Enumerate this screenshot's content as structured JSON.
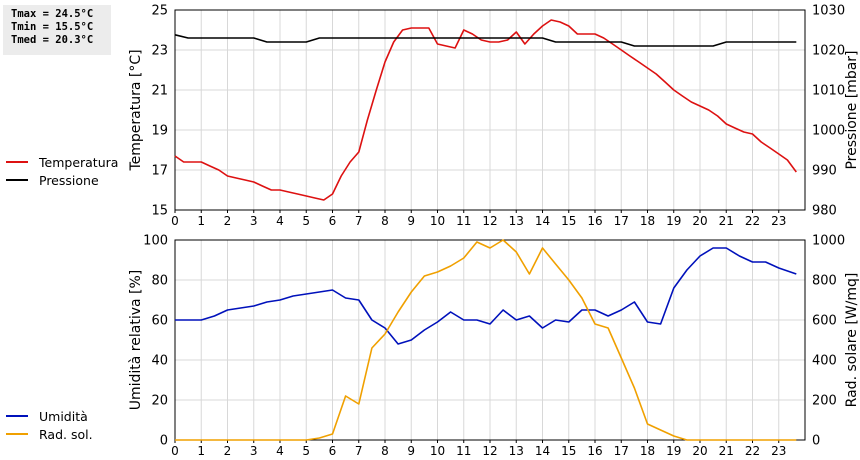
{
  "stats": {
    "tmax": "Tmax = 24.5°C",
    "tmin": "Tmin = 15.5°C",
    "tmed": "Tmed = 20.3°C"
  },
  "colors": {
    "temperature": "#dd1111",
    "pressure": "#000000",
    "humidity": "#0011bb",
    "solar": "#f0a000",
    "grid": "#d8d8d8"
  },
  "chart_data": [
    {
      "type": "line",
      "xlim": [
        0,
        24
      ],
      "x_ticks": [
        0,
        1,
        2,
        3,
        4,
        5,
        6,
        7,
        8,
        9,
        10,
        11,
        12,
        13,
        14,
        15,
        16,
        17,
        18,
        19,
        20,
        21,
        22,
        23
      ],
      "y_left": {
        "label": "Temperatura [°C]",
        "lim": [
          15,
          25
        ],
        "ticks": [
          15,
          17,
          19,
          21,
          23,
          25
        ]
      },
      "y_right": {
        "label": "Pressione [mbar]",
        "lim": [
          980,
          1030
        ],
        "ticks": [
          980,
          990,
          1000,
          1010,
          1020,
          1030
        ]
      },
      "grid": true,
      "legend_placement": "left",
      "series": [
        {
          "name": "Temperatura",
          "axis": "left",
          "color": "#dd1111",
          "points": [
            [
              0,
              17.7
            ],
            [
              0.33,
              17.4
            ],
            [
              0.67,
              17.4
            ],
            [
              1,
              17.4
            ],
            [
              1.33,
              17.2
            ],
            [
              1.67,
              17.0
            ],
            [
              2,
              16.7
            ],
            [
              2.33,
              16.6
            ],
            [
              2.67,
              16.5
            ],
            [
              3,
              16.4
            ],
            [
              3.33,
              16.2
            ],
            [
              3.67,
              16.0
            ],
            [
              4,
              16.0
            ],
            [
              4.33,
              15.9
            ],
            [
              4.67,
              15.8
            ],
            [
              5,
              15.7
            ],
            [
              5.33,
              15.6
            ],
            [
              5.67,
              15.5
            ],
            [
              6,
              15.8
            ],
            [
              6.33,
              16.7
            ],
            [
              6.67,
              17.4
            ],
            [
              7,
              17.9
            ],
            [
              7.33,
              19.5
            ],
            [
              7.67,
              21.0
            ],
            [
              8,
              22.4
            ],
            [
              8.33,
              23.4
            ],
            [
              8.67,
              24.0
            ],
            [
              9,
              24.1
            ],
            [
              9.33,
              24.1
            ],
            [
              9.67,
              24.1
            ],
            [
              10,
              23.3
            ],
            [
              10.33,
              23.2
            ],
            [
              10.67,
              23.1
            ],
            [
              11,
              24.0
            ],
            [
              11.33,
              23.8
            ],
            [
              11.67,
              23.5
            ],
            [
              12,
              23.4
            ],
            [
              12.33,
              23.4
            ],
            [
              12.67,
              23.5
            ],
            [
              13,
              23.9
            ],
            [
              13.33,
              23.3
            ],
            [
              13.67,
              23.8
            ],
            [
              14,
              24.2
            ],
            [
              14.33,
              24.5
            ],
            [
              14.67,
              24.4
            ],
            [
              15,
              24.2
            ],
            [
              15.33,
              23.8
            ],
            [
              15.67,
              23.8
            ],
            [
              16,
              23.8
            ],
            [
              16.33,
              23.6
            ],
            [
              16.67,
              23.3
            ],
            [
              17,
              23.0
            ],
            [
              17.33,
              22.7
            ],
            [
              17.67,
              22.4
            ],
            [
              18,
              22.1
            ],
            [
              18.33,
              21.8
            ],
            [
              18.67,
              21.4
            ],
            [
              19,
              21.0
            ],
            [
              19.33,
              20.7
            ],
            [
              19.67,
              20.4
            ],
            [
              20,
              20.2
            ],
            [
              20.33,
              20.0
            ],
            [
              20.67,
              19.7
            ],
            [
              21,
              19.3
            ],
            [
              21.33,
              19.1
            ],
            [
              21.67,
              18.9
            ],
            [
              22,
              18.8
            ],
            [
              22.33,
              18.4
            ],
            [
              22.67,
              18.1
            ],
            [
              23,
              17.8
            ],
            [
              23.33,
              17.5
            ],
            [
              23.67,
              16.9
            ]
          ]
        },
        {
          "name": "Pressione",
          "axis": "right",
          "color": "#000000",
          "points": [
            [
              0,
              1023.8
            ],
            [
              0.5,
              1023.0
            ],
            [
              1,
              1023.0
            ],
            [
              2,
              1023.0
            ],
            [
              3,
              1023.0
            ],
            [
              3.5,
              1022.0
            ],
            [
              4,
              1022.0
            ],
            [
              4.5,
              1022.0
            ],
            [
              5,
              1022.0
            ],
            [
              5.5,
              1023.0
            ],
            [
              6,
              1023.0
            ],
            [
              10,
              1023.0
            ],
            [
              13,
              1023.0
            ],
            [
              14,
              1023.0
            ],
            [
              14.5,
              1022.0
            ],
            [
              15,
              1022.0
            ],
            [
              17,
              1022.0
            ],
            [
              17.5,
              1021.0
            ],
            [
              20.5,
              1021.0
            ],
            [
              21,
              1022.0
            ],
            [
              22,
              1022.0
            ],
            [
              23.67,
              1022.0
            ]
          ]
        }
      ]
    },
    {
      "type": "line",
      "xlim": [
        0,
        24
      ],
      "x_ticks": [
        0,
        1,
        2,
        3,
        4,
        5,
        6,
        7,
        8,
        9,
        10,
        11,
        12,
        13,
        14,
        15,
        16,
        17,
        18,
        19,
        20,
        21,
        22,
        23
      ],
      "y_left": {
        "label": "Umidità relativa [%]",
        "lim": [
          0,
          100
        ],
        "ticks": [
          0,
          20,
          40,
          60,
          80,
          100
        ]
      },
      "y_right": {
        "label": "Rad. solare [W/mq]",
        "lim": [
          0,
          1000
        ],
        "ticks": [
          0,
          200,
          400,
          600,
          800,
          1000
        ]
      },
      "grid": true,
      "legend_placement": "left",
      "series": [
        {
          "name": "Umidità",
          "axis": "left",
          "color": "#0011bb",
          "points": [
            [
              0,
              60
            ],
            [
              1,
              60
            ],
            [
              1.5,
              62
            ],
            [
              2,
              65
            ],
            [
              2.5,
              66
            ],
            [
              3,
              67
            ],
            [
              3.5,
              69
            ],
            [
              4,
              70
            ],
            [
              4.5,
              72
            ],
            [
              5,
              73
            ],
            [
              5.5,
              74
            ],
            [
              6,
              75
            ],
            [
              6.5,
              71
            ],
            [
              7,
              70
            ],
            [
              7.5,
              60
            ],
            [
              8,
              56
            ],
            [
              8.5,
              48
            ],
            [
              9,
              50
            ],
            [
              9.5,
              55
            ],
            [
              10,
              59
            ],
            [
              10.5,
              64
            ],
            [
              11,
              60
            ],
            [
              11.5,
              60
            ],
            [
              12,
              58
            ],
            [
              12.5,
              65
            ],
            [
              13,
              60
            ],
            [
              13.5,
              62
            ],
            [
              14,
              56
            ],
            [
              14.5,
              60
            ],
            [
              15,
              59
            ],
            [
              15.5,
              65
            ],
            [
              16,
              65
            ],
            [
              16.5,
              62
            ],
            [
              17,
              65
            ],
            [
              17.5,
              69
            ],
            [
              18,
              59
            ],
            [
              18.5,
              58
            ],
            [
              19,
              76
            ],
            [
              19.5,
              85
            ],
            [
              20,
              92
            ],
            [
              20.5,
              96
            ],
            [
              21,
              96
            ],
            [
              21.5,
              92
            ],
            [
              22,
              89
            ],
            [
              22.5,
              89
            ],
            [
              23,
              86
            ],
            [
              23.67,
              83
            ]
          ]
        },
        {
          "name": "Rad. sol.",
          "axis": "right",
          "color": "#f0a000",
          "points": [
            [
              0,
              0
            ],
            [
              5,
              0
            ],
            [
              5.5,
              10
            ],
            [
              6,
              30
            ],
            [
              6.5,
              220
            ],
            [
              7,
              180
            ],
            [
              7.5,
              460
            ],
            [
              8,
              530
            ],
            [
              8.5,
              640
            ],
            [
              9,
              740
            ],
            [
              9.5,
              820
            ],
            [
              10,
              840
            ],
            [
              10.5,
              870
            ],
            [
              11,
              910
            ],
            [
              11.5,
              990
            ],
            [
              12,
              960
            ],
            [
              12.5,
              1020
            ],
            [
              13,
              940
            ],
            [
              13.5,
              830
            ],
            [
              14,
              960
            ],
            [
              14.5,
              880
            ],
            [
              15,
              800
            ],
            [
              15.5,
              710
            ],
            [
              16,
              580
            ],
            [
              16.5,
              560
            ],
            [
              17,
              410
            ],
            [
              17.5,
              260
            ],
            [
              18,
              80
            ],
            [
              18.5,
              50
            ],
            [
              19,
              20
            ],
            [
              19.5,
              0
            ],
            [
              23.67,
              0
            ]
          ]
        }
      ]
    }
  ]
}
